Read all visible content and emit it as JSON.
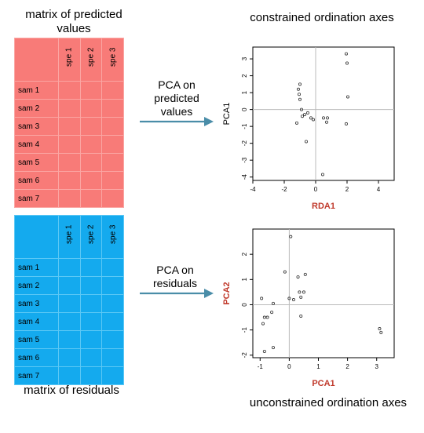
{
  "top_matrix": {
    "title": "matrix of predicted values",
    "columns": [
      "spe 1",
      "spe 2",
      "spe 3"
    ],
    "rows": [
      "sam 1",
      "sam 2",
      "sam 3",
      "sam 4",
      "sam 5",
      "sam 6",
      "sam 7"
    ],
    "color": "#f87b78"
  },
  "bottom_matrix": {
    "title": "matrix of residuals",
    "columns": [
      "spe 1",
      "spe 2",
      "spe 3"
    ],
    "rows": [
      "sam 1",
      "sam 2",
      "sam 3",
      "sam 4",
      "sam 5",
      "sam 6",
      "sam 7"
    ],
    "color": "#14aaee"
  },
  "top_arrow_label": "PCA on predicted values",
  "bottom_arrow_label": "PCA on residuals",
  "arrow_color": "#4a8da8",
  "top_plot_title": "constrained ordination axes",
  "bottom_plot_title": "unconstrained ordination axes",
  "chart_data": [
    {
      "type": "scatter",
      "xlabel": "RDA1",
      "ylabel": "PCA1",
      "xlabel_color": "#c0392b",
      "ylabel_color": "#000000",
      "xlim": [
        -4,
        5
      ],
      "ylim": [
        -4.2,
        3.7
      ],
      "xticks": [
        -4,
        -2,
        0,
        2,
        4
      ],
      "yticks": [
        -4,
        -3,
        -2,
        -1,
        0,
        1,
        2,
        3
      ],
      "points": [
        [
          -1.0,
          1.5
        ],
        [
          -1.1,
          1.2
        ],
        [
          -1.05,
          0.9
        ],
        [
          -1.0,
          0.6
        ],
        [
          -0.9,
          0.0
        ],
        [
          -0.7,
          -0.3
        ],
        [
          -0.5,
          -0.2
        ],
        [
          -0.3,
          -0.5
        ],
        [
          -0.15,
          -0.6
        ],
        [
          0.5,
          -0.5
        ],
        [
          0.7,
          -0.75
        ],
        [
          0.75,
          -0.5
        ],
        [
          -0.85,
          -0.4
        ],
        [
          -1.2,
          -0.8
        ],
        [
          -0.6,
          -1.9
        ],
        [
          0.45,
          -3.85
        ],
        [
          1.95,
          3.3
        ],
        [
          2.0,
          2.75
        ],
        [
          2.05,
          0.75
        ],
        [
          1.95,
          -0.85
        ]
      ]
    },
    {
      "type": "scatter",
      "xlabel": "PCA1",
      "ylabel": "PCA2",
      "xlabel_color": "#c0392b",
      "ylabel_color": "#c0392b",
      "xlim": [
        -1.25,
        3.6
      ],
      "ylim": [
        -2.1,
        3.0
      ],
      "xticks": [
        -1,
        0,
        1,
        2,
        3
      ],
      "yticks": [
        -2,
        -1,
        0,
        1,
        2
      ],
      "points": [
        [
          0.05,
          2.7
        ],
        [
          -0.15,
          1.3
        ],
        [
          -0.95,
          0.25
        ],
        [
          -0.85,
          -0.5
        ],
        [
          -0.9,
          -0.75
        ],
        [
          -0.75,
          -0.5
        ],
        [
          -0.55,
          0.05
        ],
        [
          -0.6,
          -0.3
        ],
        [
          -0.55,
          -1.7
        ],
        [
          -0.85,
          -1.85
        ],
        [
          0.3,
          1.1
        ],
        [
          0.55,
          1.2
        ],
        [
          0.35,
          0.5
        ],
        [
          0.5,
          0.5
        ],
        [
          0.4,
          0.3
        ],
        [
          0.0,
          0.25
        ],
        [
          0.15,
          0.2
        ],
        [
          0.4,
          -0.45
        ],
        [
          3.1,
          -0.95
        ],
        [
          3.15,
          -1.1
        ]
      ]
    }
  ]
}
